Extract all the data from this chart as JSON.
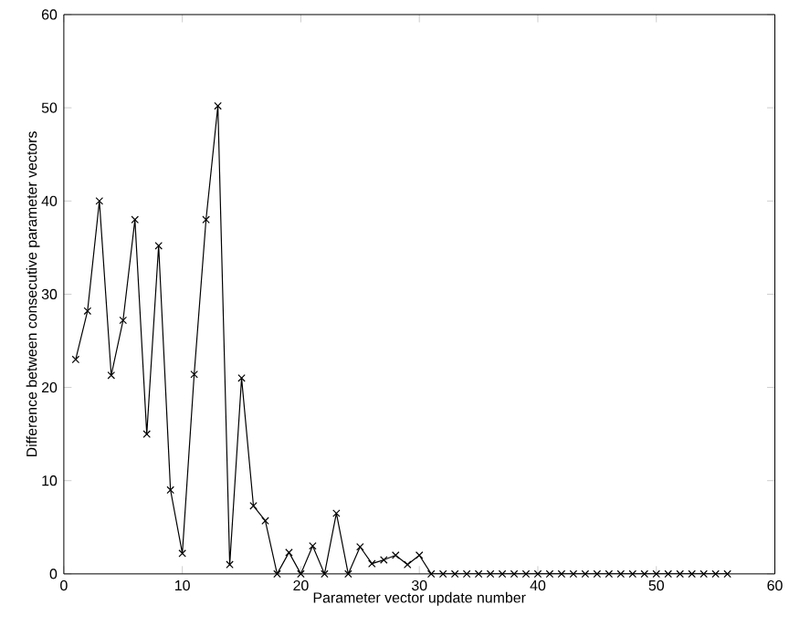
{
  "chart_data": {
    "type": "line",
    "xlabel": "Parameter vector update number",
    "ylabel": "Difference between consecutive parameter vectors",
    "x": [
      1,
      2,
      3,
      4,
      5,
      6,
      7,
      8,
      9,
      10,
      11,
      12,
      13,
      14,
      15,
      16,
      17,
      18,
      19,
      20,
      21,
      22,
      23,
      24,
      25,
      26,
      27,
      28,
      29,
      30,
      31,
      32,
      33,
      34,
      35,
      36,
      37,
      38,
      39,
      40,
      41,
      42,
      43,
      44,
      45,
      46,
      47,
      48,
      49,
      50,
      51,
      52,
      53,
      54,
      55,
      56
    ],
    "values": [
      23,
      28.2,
      40,
      21.3,
      27.2,
      38,
      15,
      35.2,
      9,
      2.2,
      21.4,
      38,
      50.2,
      1,
      21,
      7.3,
      5.7,
      0,
      2.3,
      0,
      3,
      0,
      6.5,
      0,
      2.9,
      1.1,
      1.5,
      2,
      1,
      2,
      0,
      0,
      0,
      0,
      0,
      0,
      0,
      0,
      0,
      0,
      0,
      0,
      0,
      0,
      0,
      0,
      0,
      0,
      0,
      0,
      0,
      0,
      0,
      0,
      0,
      0
    ],
    "color": "#000000",
    "marker": "cross",
    "line_style": "solid",
    "xlim": [
      0,
      60
    ],
    "ylim": [
      0,
      60
    ],
    "xticks": [
      0,
      10,
      20,
      30,
      40,
      50,
      60
    ],
    "yticks": [
      0,
      10,
      20,
      30,
      40,
      50,
      60
    ]
  }
}
